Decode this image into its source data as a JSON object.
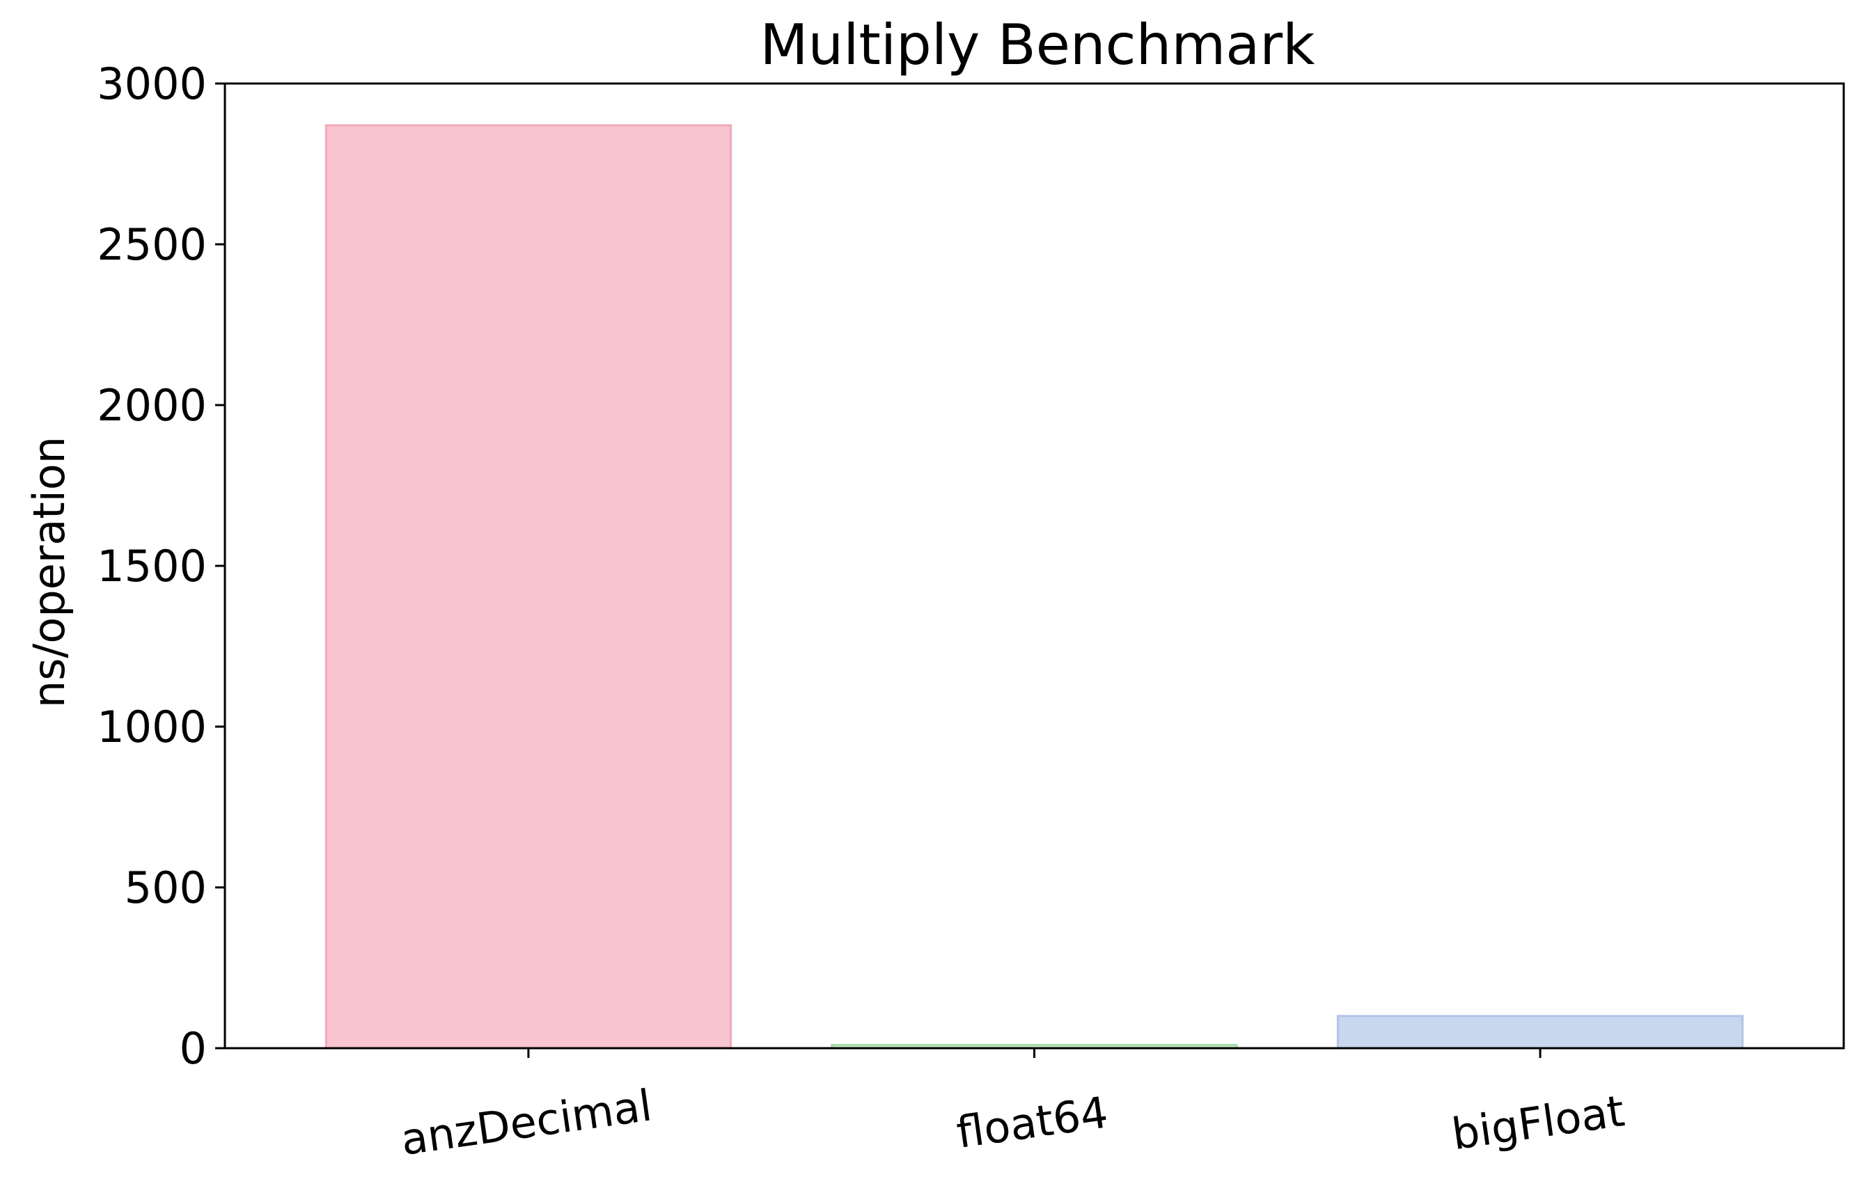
{
  "chart_data": {
    "type": "bar",
    "title": "Multiply Benchmark",
    "xlabel": "",
    "ylabel": "ns/operation",
    "categories": [
      "anzDecimal",
      "float64",
      "bigFloat"
    ],
    "values": [
      2870,
      10,
      100
    ],
    "ylim": [
      0,
      3000
    ],
    "yticks": [
      0,
      500,
      1000,
      1500,
      2000,
      2500,
      3000
    ],
    "grid": false,
    "legend": "none",
    "colors": {
      "fills": [
        "#f8c4cf",
        "#cdeccd",
        "#c9d7ee"
      ],
      "edges": [
        "#f3a7ba",
        "#a6dba6",
        "#b0c4e6"
      ],
      "axis": "#000000"
    }
  }
}
